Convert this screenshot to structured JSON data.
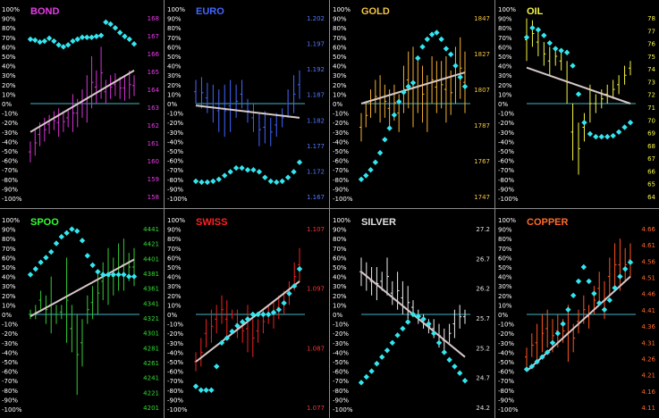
{
  "chart_data": [
    {
      "type": "line",
      "title": "BOND",
      "title_color": "#e83be8",
      "scale_color": "#e83be8",
      "price_color": "#d633d6",
      "left_ticks": [
        "100%",
        "90%",
        "80%",
        "70%",
        "60%",
        "50%",
        "40%",
        "30%",
        "20%",
        "10%",
        "0%",
        "-10%",
        "-20%",
        "-30%",
        "-40%",
        "-50%",
        "-60%",
        "-70%",
        "-80%",
        "-90%",
        "-100%"
      ],
      "right_ticks": [
        "168",
        "167",
        "166",
        "165",
        "164",
        "163",
        "162",
        "161",
        "160",
        "159",
        "158"
      ],
      "oscillator_pct": [
        68,
        67,
        65,
        66,
        69,
        66,
        62,
        60,
        62,
        66,
        68,
        70,
        70,
        70,
        71,
        72,
        86,
        84,
        80,
        75,
        71,
        68,
        63
      ],
      "price_bars": [
        {
          "lo": -62,
          "hi": -40
        },
        {
          "lo": -55,
          "hi": -28
        },
        {
          "lo": -45,
          "hi": -20
        },
        {
          "lo": -40,
          "hi": -15
        },
        {
          "lo": -32,
          "hi": -12
        },
        {
          "lo": -28,
          "hi": -8
        },
        {
          "lo": -35,
          "hi": -5
        },
        {
          "lo": -30,
          "hi": -8
        },
        {
          "lo": -25,
          "hi": -5
        },
        {
          "lo": -30,
          "hi": 10
        },
        {
          "lo": -25,
          "hi": 5
        },
        {
          "lo": -15,
          "hi": 15
        },
        {
          "lo": -20,
          "hi": 30
        },
        {
          "lo": -5,
          "hi": 50
        },
        {
          "lo": 0,
          "hi": 35
        },
        {
          "lo": 5,
          "hi": 60
        },
        {
          "lo": 0,
          "hi": 25
        },
        {
          "lo": 5,
          "hi": 30
        },
        {
          "lo": 8,
          "hi": 32
        },
        {
          "lo": 5,
          "hi": 28
        },
        {
          "lo": 3,
          "hi": 30
        },
        {
          "lo": 5,
          "hi": 35
        },
        {
          "lo": 8,
          "hi": 30
        }
      ],
      "trend_pct": [
        -30,
        35
      ]
    },
    {
      "type": "line",
      "title": "EURO",
      "title_color": "#4466ff",
      "scale_color": "#5577ff",
      "price_color": "#4466ff",
      "left_ticks": [
        "100%",
        "90%",
        "80%",
        "70%",
        "60%",
        "50%",
        "40%",
        "30%",
        "20%",
        "10%",
        "0%",
        "-10%",
        "-20%",
        "-30%",
        "-40%",
        "-50%",
        "-60%",
        "-70%",
        "-80%",
        "-90%",
        "-100%"
      ],
      "right_ticks": [
        "1.202",
        "1.197",
        "1.192",
        "1.187",
        "1.182",
        "1.177",
        "1.172",
        "1.167"
      ],
      "oscillator_pct": [
        -82,
        -83,
        -83,
        -82,
        -80,
        -76,
        -72,
        -68,
        -68,
        -70,
        -70,
        -72,
        -78,
        -82,
        -83,
        -82,
        -78,
        -72,
        -62
      ],
      "price_bars": [
        {
          "lo": 0,
          "hi": 25
        },
        {
          "lo": -5,
          "hi": 28
        },
        {
          "lo": -10,
          "hi": 22
        },
        {
          "lo": -20,
          "hi": 20
        },
        {
          "lo": -30,
          "hi": 15
        },
        {
          "lo": -35,
          "hi": 20
        },
        {
          "lo": -30,
          "hi": 25
        },
        {
          "lo": -15,
          "hi": 20
        },
        {
          "lo": -5,
          "hi": 25
        },
        {
          "lo": -20,
          "hi": 5
        },
        {
          "lo": -30,
          "hi": 0
        },
        {
          "lo": -45,
          "hi": -10
        },
        {
          "lo": -42,
          "hi": -8
        },
        {
          "lo": -45,
          "hi": -15
        },
        {
          "lo": -35,
          "hi": -10
        },
        {
          "lo": -25,
          "hi": -5
        },
        {
          "lo": -15,
          "hi": 15
        },
        {
          "lo": -10,
          "hi": 30
        },
        {
          "lo": 5,
          "hi": 35
        }
      ],
      "trend_pct": [
        -2,
        -15
      ]
    },
    {
      "type": "line",
      "title": "GOLD",
      "title_color": "#f5c542",
      "scale_color": "#f5c542",
      "price_color": "#f5b030",
      "left_ticks": [
        "100%",
        "90%",
        "80%",
        "70%",
        "60%",
        "50%",
        "40%",
        "30%",
        "20%",
        "10%",
        "0%",
        "-10%",
        "-20%",
        "-30%",
        "-40%",
        "-50%",
        "-60%",
        "-70%",
        "-80%",
        "-90%",
        "-100%"
      ],
      "right_ticks": [
        "1847",
        "1827",
        "1807",
        "1787",
        "1767",
        "1747"
      ],
      "oscillator_pct": [
        -80,
        -76,
        -70,
        -62,
        -52,
        -38,
        -26,
        -12,
        2,
        12,
        18,
        22,
        48,
        60,
        68,
        73,
        75,
        68,
        58,
        52,
        40,
        28,
        18
      ],
      "price_bars": [
        {
          "lo": -40,
          "hi": -10
        },
        {
          "lo": -25,
          "hi": 0
        },
        {
          "lo": -15,
          "hi": 15
        },
        {
          "lo": -10,
          "hi": 25
        },
        {
          "lo": -20,
          "hi": 30
        },
        {
          "lo": -15,
          "hi": 20
        },
        {
          "lo": -25,
          "hi": 15
        },
        {
          "lo": -18,
          "hi": 20
        },
        {
          "lo": -30,
          "hi": 10
        },
        {
          "lo": -10,
          "hi": 40
        },
        {
          "lo": -5,
          "hi": 55
        },
        {
          "lo": -25,
          "hi": 60
        },
        {
          "lo": -10,
          "hi": 45
        },
        {
          "lo": -20,
          "hi": 40
        },
        {
          "lo": -30,
          "hi": 30
        },
        {
          "lo": 0,
          "hi": 50
        },
        {
          "lo": -10,
          "hi": 45
        },
        {
          "lo": -5,
          "hi": 45
        },
        {
          "lo": -20,
          "hi": 50
        },
        {
          "lo": -12,
          "hi": 35
        },
        {
          "lo": 0,
          "hi": 60
        },
        {
          "lo": 5,
          "hi": 70
        },
        {
          "lo": -10,
          "hi": 55
        }
      ],
      "trend_pct": [
        0,
        33
      ]
    },
    {
      "type": "line",
      "title": "OIL",
      "title_color": "#f5f542",
      "scale_color": "#f5f542",
      "price_color": "#f5f542",
      "left_ticks": [
        "100%",
        "90%",
        "80%",
        "70%",
        "60%",
        "50%",
        "40%",
        "30%",
        "20%",
        "10%",
        "0%",
        "-10%",
        "-20%",
        "-30%",
        "-40%",
        "-50%",
        "-60%",
        "-70%",
        "-80%",
        "-90%",
        "-100%"
      ],
      "right_ticks": [
        "78",
        "77",
        "76",
        "75",
        "74",
        "73",
        "72",
        "71",
        "70",
        "69",
        "68",
        "67",
        "66",
        "65",
        "64"
      ],
      "oscillator_pct": [
        70,
        80,
        78,
        72,
        64,
        58,
        56,
        54,
        40,
        10,
        -20,
        -32,
        -35,
        -35,
        -35,
        -34,
        -30,
        -25,
        -20
      ],
      "price_bars": [
        {
          "lo": 45,
          "hi": 90
        },
        {
          "lo": 60,
          "hi": 88
        },
        {
          "lo": 50,
          "hi": 80
        },
        {
          "lo": 40,
          "hi": 65
        },
        {
          "lo": 30,
          "hi": 60
        },
        {
          "lo": 40,
          "hi": 60
        },
        {
          "lo": 35,
          "hi": 55
        },
        {
          "lo": 0,
          "hi": 45
        },
        {
          "lo": -60,
          "hi": 0
        },
        {
          "lo": -75,
          "hi": -20
        },
        {
          "lo": -40,
          "hi": -10
        },
        {
          "lo": -20,
          "hi": 20
        },
        {
          "lo": -10,
          "hi": 10
        },
        {
          "lo": -5,
          "hi": 15
        },
        {
          "lo": 0,
          "hi": 20
        },
        {
          "lo": 5,
          "hi": 25
        },
        {
          "lo": 10,
          "hi": 30
        },
        {
          "lo": 20,
          "hi": 40
        },
        {
          "lo": 30,
          "hi": 45
        }
      ],
      "trend_pct": [
        38,
        0
      ]
    },
    {
      "type": "line",
      "title": "SPOO",
      "title_color": "#33ff33",
      "scale_color": "#33dd33",
      "price_color": "#33cc33",
      "left_ticks": [
        "100%",
        "90%",
        "80%",
        "70%",
        "60%",
        "50%",
        "40%",
        "30%",
        "20%",
        "10%",
        "0%",
        "-10%",
        "-20%",
        "-30%",
        "-40%",
        "-50%",
        "-60%",
        "-70%",
        "-80%",
        "-90%",
        "-100%"
      ],
      "right_ticks": [
        "4441",
        "4421",
        "4401",
        "4381",
        "4361",
        "4341",
        "4321",
        "4301",
        "4281",
        "4261",
        "4241",
        "4221",
        "4201"
      ],
      "oscillator_pct": [
        42,
        48,
        55,
        60,
        66,
        75,
        82,
        86,
        90,
        88,
        78,
        62,
        52,
        45,
        42,
        42,
        42,
        42,
        42,
        40,
        40
      ],
      "price_bars": [
        {
          "lo": -5,
          "hi": 5
        },
        {
          "lo": -5,
          "hi": 10
        },
        {
          "lo": 5,
          "hi": 25
        },
        {
          "lo": -10,
          "hi": 20
        },
        {
          "lo": -20,
          "hi": 40
        },
        {
          "lo": -10,
          "hi": 10
        },
        {
          "lo": -5,
          "hi": 10
        },
        {
          "lo": -30,
          "hi": 60
        },
        {
          "lo": -40,
          "hi": 10
        },
        {
          "lo": -85,
          "hi": 0
        },
        {
          "lo": -55,
          "hi": -5
        },
        {
          "lo": -10,
          "hi": 20
        },
        {
          "lo": -5,
          "hi": 30
        },
        {
          "lo": 0,
          "hi": 45
        },
        {
          "lo": 15,
          "hi": 55
        },
        {
          "lo": 10,
          "hi": 70
        },
        {
          "lo": 20,
          "hi": 60
        },
        {
          "lo": 25,
          "hi": 75
        },
        {
          "lo": 25,
          "hi": 80
        },
        {
          "lo": 35,
          "hi": 65
        },
        {
          "lo": 30,
          "hi": 70
        }
      ],
      "trend_pct": [
        -2,
        58
      ]
    },
    {
      "type": "line",
      "title": "SWISS",
      "title_color": "#ff2222",
      "scale_color": "#ff3333",
      "price_color": "#ee2222",
      "left_ticks": [
        "100%",
        "90%",
        "80%",
        "70%",
        "60%",
        "50%",
        "40%",
        "30%",
        "20%",
        "10%",
        "0%",
        "-10%",
        "-20%",
        "-30%",
        "-40%",
        "-50%",
        "-60%",
        "-70%",
        "-80%",
        "-90%",
        "-100%"
      ],
      "right_ticks": [
        "1.107",
        "1.097",
        "1.087",
        "1.077"
      ],
      "oscillator_pct": [
        -76,
        -80,
        -80,
        -80,
        -55,
        -30,
        -25,
        -18,
        -12,
        -8,
        -5,
        0,
        0,
        0,
        0,
        2,
        5,
        12,
        22,
        30,
        48
      ],
      "price_bars": [
        {
          "lo": -60,
          "hi": -40
        },
        {
          "lo": -55,
          "hi": -25
        },
        {
          "lo": -35,
          "hi": -5
        },
        {
          "lo": -30,
          "hi": 5
        },
        {
          "lo": -20,
          "hi": 10
        },
        {
          "lo": -10,
          "hi": 20
        },
        {
          "lo": -25,
          "hi": 15
        },
        {
          "lo": -5,
          "hi": 5
        },
        {
          "lo": -25,
          "hi": 5
        },
        {
          "lo": -30,
          "hi": -5
        },
        {
          "lo": -40,
          "hi": 10
        },
        {
          "lo": -45,
          "hi": -5
        },
        {
          "lo": -30,
          "hi": -5
        },
        {
          "lo": -20,
          "hi": 5
        },
        {
          "lo": -10,
          "hi": 10
        },
        {
          "lo": -15,
          "hi": 15
        },
        {
          "lo": -5,
          "hi": 20
        },
        {
          "lo": 0,
          "hi": 25
        },
        {
          "lo": 10,
          "hi": 35
        },
        {
          "lo": 25,
          "hi": 55
        },
        {
          "lo": 35,
          "hi": 70
        }
      ],
      "trend_pct": [
        -50,
        35
      ]
    },
    {
      "type": "line",
      "title": "SILVER",
      "title_color": "#e0e0e0",
      "scale_color": "#e0e0e0",
      "price_color": "#eeeeee",
      "left_ticks": [
        "100%",
        "90%",
        "80%",
        "70%",
        "60%",
        "50%",
        "40%",
        "30%",
        "20%",
        "10%",
        "0%",
        "-10%",
        "-20%",
        "-30%",
        "-40%",
        "-50%",
        "-60%",
        "-70%",
        "-80%",
        "-90%",
        "-100%"
      ],
      "right_ticks": [
        "27.2",
        "26.7",
        "26.2",
        "25.7",
        "25.2",
        "24.7",
        "24.2"
      ],
      "oscillator_pct": [
        -72,
        -66,
        -60,
        -52,
        -45,
        -38,
        -30,
        -22,
        -15,
        -8,
        0,
        -2,
        -5,
        -10,
        -20,
        -30,
        -40,
        -48,
        -55,
        -62,
        -70
      ],
      "price_bars": [
        {
          "lo": 30,
          "hi": 60
        },
        {
          "lo": 25,
          "hi": 55
        },
        {
          "lo": 20,
          "hi": 50
        },
        {
          "lo": 15,
          "hi": 50
        },
        {
          "lo": 25,
          "hi": 45
        },
        {
          "lo": 20,
          "hi": 60
        },
        {
          "lo": 10,
          "hi": 35
        },
        {
          "lo": 5,
          "hi": 45
        },
        {
          "lo": 0,
          "hi": 35
        },
        {
          "lo": -5,
          "hi": 30
        },
        {
          "lo": 0,
          "hi": 15
        },
        {
          "lo": -10,
          "hi": 5
        },
        {
          "lo": -15,
          "hi": 0
        },
        {
          "lo": -20,
          "hi": -5
        },
        {
          "lo": -25,
          "hi": -5
        },
        {
          "lo": -35,
          "hi": -10
        },
        {
          "lo": -40,
          "hi": -15
        },
        {
          "lo": -30,
          "hi": -10
        },
        {
          "lo": -25,
          "hi": 5
        },
        {
          "lo": -15,
          "hi": 10
        },
        {
          "lo": -10,
          "hi": 5
        }
      ],
      "trend_pct": [
        45,
        -45
      ]
    },
    {
      "type": "line",
      "title": "COPPER",
      "title_color": "#ff6a2a",
      "scale_color": "#ff6a2a",
      "price_color": "#ff5520",
      "left_ticks": [
        "100%",
        "90%",
        "80%",
        "70%",
        "60%",
        "50%",
        "40%",
        "30%",
        "20%",
        "10%",
        "0%",
        "-10%",
        "-20%",
        "-30%",
        "-40%",
        "-50%",
        "-60%",
        "-70%",
        "-80%",
        "-90%",
        "-100%"
      ],
      "right_ticks": [
        "4.66",
        "4.61",
        "4.56",
        "4.51",
        "4.46",
        "4.41",
        "4.36",
        "4.31",
        "4.26",
        "4.21",
        "4.16",
        "4.11"
      ],
      "oscillator_pct": [
        -58,
        -55,
        -50,
        -45,
        -40,
        -30,
        -20,
        -10,
        5,
        20,
        35,
        50,
        35,
        22,
        12,
        5,
        15,
        28,
        40,
        48,
        55
      ],
      "price_bars": [
        {
          "lo": -55,
          "hi": -35
        },
        {
          "lo": -45,
          "hi": -20
        },
        {
          "lo": -50,
          "hi": -10
        },
        {
          "lo": -40,
          "hi": 0
        },
        {
          "lo": -35,
          "hi": 5
        },
        {
          "lo": -40,
          "hi": -5
        },
        {
          "lo": -35,
          "hi": 0
        },
        {
          "lo": -30,
          "hi": -5
        },
        {
          "lo": -50,
          "hi": 10
        },
        {
          "lo": -40,
          "hi": -10
        },
        {
          "lo": -20,
          "hi": 5
        },
        {
          "lo": -10,
          "hi": 20
        },
        {
          "lo": -15,
          "hi": 10
        },
        {
          "lo": 0,
          "hi": 30
        },
        {
          "lo": 10,
          "hi": 45
        },
        {
          "lo": -5,
          "hi": 35
        },
        {
          "lo": 20,
          "hi": 60
        },
        {
          "lo": 30,
          "hi": 75
        },
        {
          "lo": 25,
          "hi": 80
        },
        {
          "lo": 35,
          "hi": 70
        },
        {
          "lo": 40,
          "hi": 75
        }
      ],
      "trend_pct": [
        -60,
        40
      ]
    }
  ]
}
